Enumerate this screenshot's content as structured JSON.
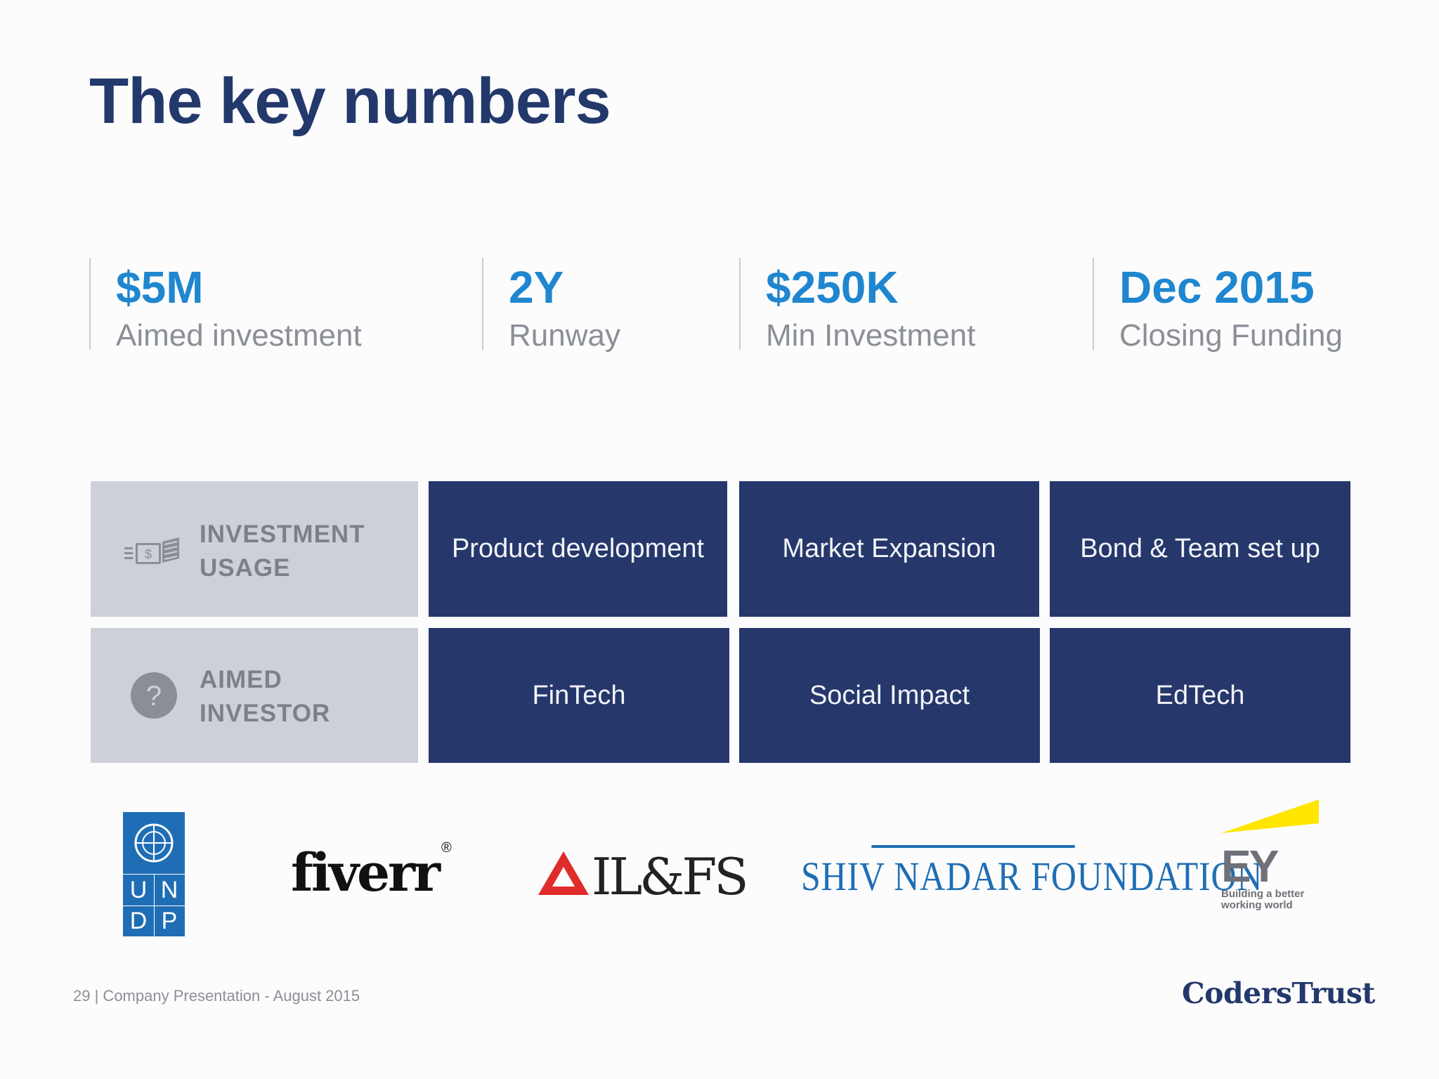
{
  "title": "The key numbers",
  "stats": [
    {
      "value": "$5M",
      "label": "Aimed investment"
    },
    {
      "value": "2Y",
      "label": "Runway"
    },
    {
      "value": "$250K",
      "label": "Min Investment"
    },
    {
      "value": "Dec 2015",
      "label": "Closing Funding"
    }
  ],
  "table": {
    "rows": [
      {
        "icon": "money-stack-icon",
        "label_line1": "INVESTMENT",
        "label_line2": "USAGE",
        "cells": [
          "Product development",
          "Market Expansion",
          "Bond & Team set up"
        ]
      },
      {
        "icon": "question-circle-icon",
        "label_line1": "AIMED",
        "label_line2": "INVESTOR",
        "cells": [
          "FinTech",
          "Social Impact",
          "EdTech"
        ]
      }
    ]
  },
  "logos": {
    "undp": {
      "row1": [
        "U",
        "N"
      ],
      "row2": [
        "D",
        "P"
      ]
    },
    "fiverr": "fiverr",
    "fiverr_mark": "®",
    "ilfs": "IL&FS",
    "shiv_nadar": "SHIV NADAR FOUNDATION",
    "ey": "EY",
    "ey_tagline_1": "Building a better",
    "ey_tagline_2": "working world"
  },
  "footer": {
    "page": "29",
    "text": "| Company Presentation - August 2015"
  },
  "brand": "CodersTrust",
  "colors": {
    "navy": "#26376b",
    "accent_blue": "#1f86cf",
    "gray_cell": "#cdd1d7",
    "title": "#23386b"
  }
}
